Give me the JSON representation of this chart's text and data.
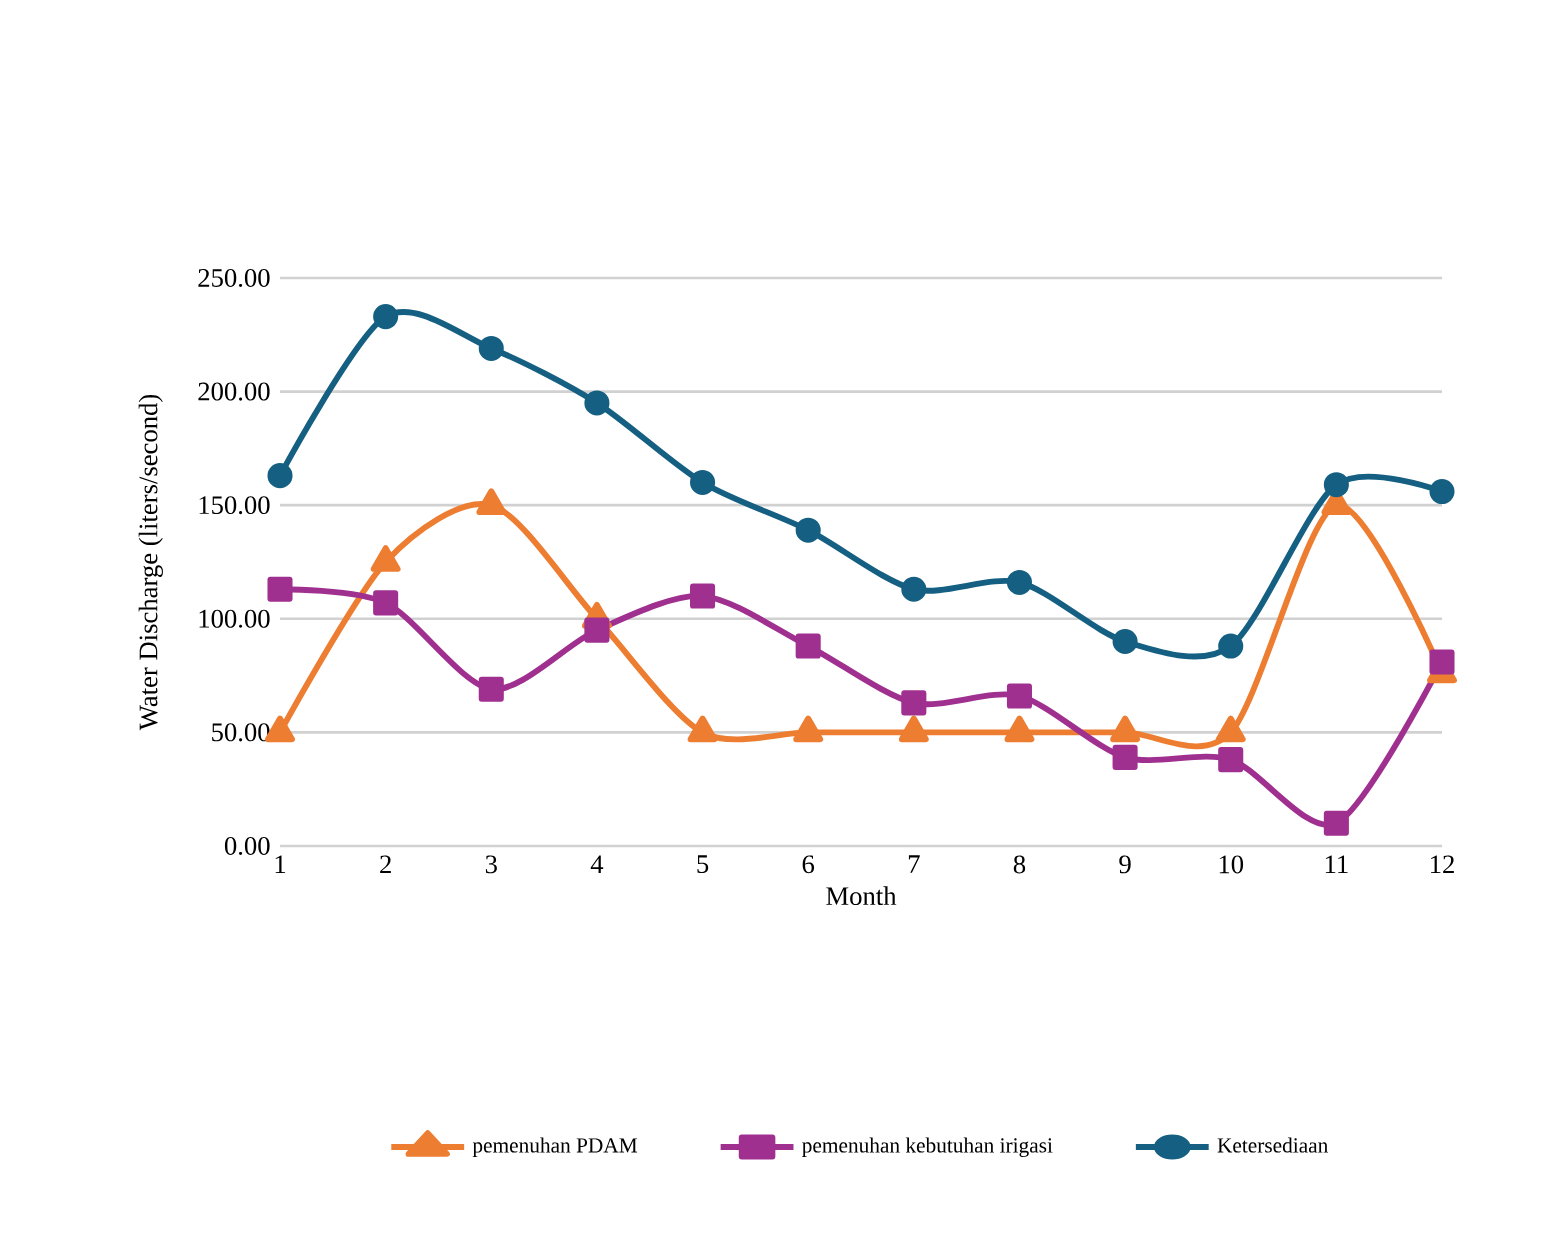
{
  "chart_data": {
    "type": "line",
    "xlabel": "Month",
    "ylabel": "Water Discharge (liters/second)",
    "categories": [
      "1",
      "2",
      "3",
      "4",
      "5",
      "6",
      "7",
      "8",
      "9",
      "10",
      "11",
      "12"
    ],
    "ylim": [
      0,
      250
    ],
    "yticks": [
      {
        "value": 0,
        "label": "0.00"
      },
      {
        "value": 50,
        "label": "50.00"
      },
      {
        "value": 100,
        "label": "100.00"
      },
      {
        "value": 150,
        "label": "150.00"
      },
      {
        "value": 200,
        "label": "200.00"
      },
      {
        "value": 250,
        "label": "250.00"
      }
    ],
    "grid": "y",
    "legend": "bottom",
    "line_style": "solid",
    "series": [
      {
        "name": "pemenuhan PDAM",
        "color": "#ed7d31",
        "marker": "triangle",
        "values": [
          50,
          125,
          150,
          100,
          50,
          50,
          50,
          50,
          50,
          50,
          150,
          76
        ]
      },
      {
        "name": "pemenuhan kebutuhan irigasi",
        "color": "#a0308f",
        "marker": "square",
        "values": [
          113,
          107,
          69,
          95,
          110,
          88,
          63,
          66,
          39,
          38,
          10,
          81
        ]
      },
      {
        "name": "Ketersediaan",
        "color": "#156082",
        "marker": "circle",
        "values": [
          163,
          233,
          219,
          195,
          160,
          139,
          113,
          116,
          90,
          88,
          159,
          156
        ]
      }
    ]
  }
}
